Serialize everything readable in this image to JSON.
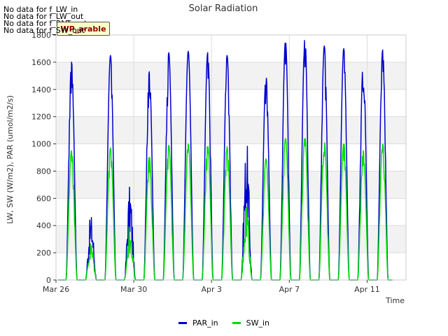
{
  "chart_data": {
    "type": "line",
    "title": "Solar Radiation",
    "xlabel": "Time",
    "ylabel": "LW, SW (W/m2), PAR (umol/m2/s)",
    "ylim": [
      0,
      1800
    ],
    "yticks": [
      0,
      200,
      400,
      600,
      800,
      1000,
      1200,
      1400,
      1600,
      1800
    ],
    "xlim_days": [
      0,
      18
    ],
    "xticks": [
      {
        "day": 0,
        "label": "Mar 26"
      },
      {
        "day": 4,
        "label": "Mar 30"
      },
      {
        "day": 8,
        "label": "Apr 3"
      },
      {
        "day": 12,
        "label": "Apr 7"
      },
      {
        "day": 16,
        "label": "Apr 11"
      }
    ],
    "grid": true,
    "legend_position": "bottom-center",
    "series": [
      {
        "name": "PAR_in",
        "color": "#0000cc",
        "daily_peak_day": [
          0.8,
          1.8,
          2.8,
          3.8,
          4.8,
          5.8,
          6.8,
          7.8,
          8.8,
          9.8,
          10.8,
          11.8,
          12.8,
          13.8,
          14.8,
          15.8,
          16.8
        ],
        "daily_peak_value": [
          1600,
          490,
          1650,
          700,
          1530,
          1670,
          1680,
          1670,
          1650,
          1040,
          1500,
          1760,
          1780,
          1720,
          1700,
          1600,
          1690
        ]
      },
      {
        "name": "SW_in",
        "color": "#00dd00",
        "daily_peak_day": [
          0.8,
          1.8,
          2.8,
          3.8,
          4.8,
          5.8,
          6.8,
          7.8,
          8.8,
          9.8,
          10.8,
          11.8,
          12.8,
          13.8,
          14.8,
          15.8,
          16.8
        ],
        "daily_peak_value": [
          950,
          290,
          970,
          410,
          910,
          990,
          1000,
          990,
          980,
          620,
          890,
          1040,
          1050,
          1020,
          1010,
          950,
          1000
        ]
      }
    ]
  },
  "annotations": {
    "nodata_lines": [
      "No data for f_LW_in",
      "No data for f_LW_out",
      "No data for f_PAR_out",
      "No data for f_SW_out"
    ],
    "badge": "WP_arable"
  }
}
